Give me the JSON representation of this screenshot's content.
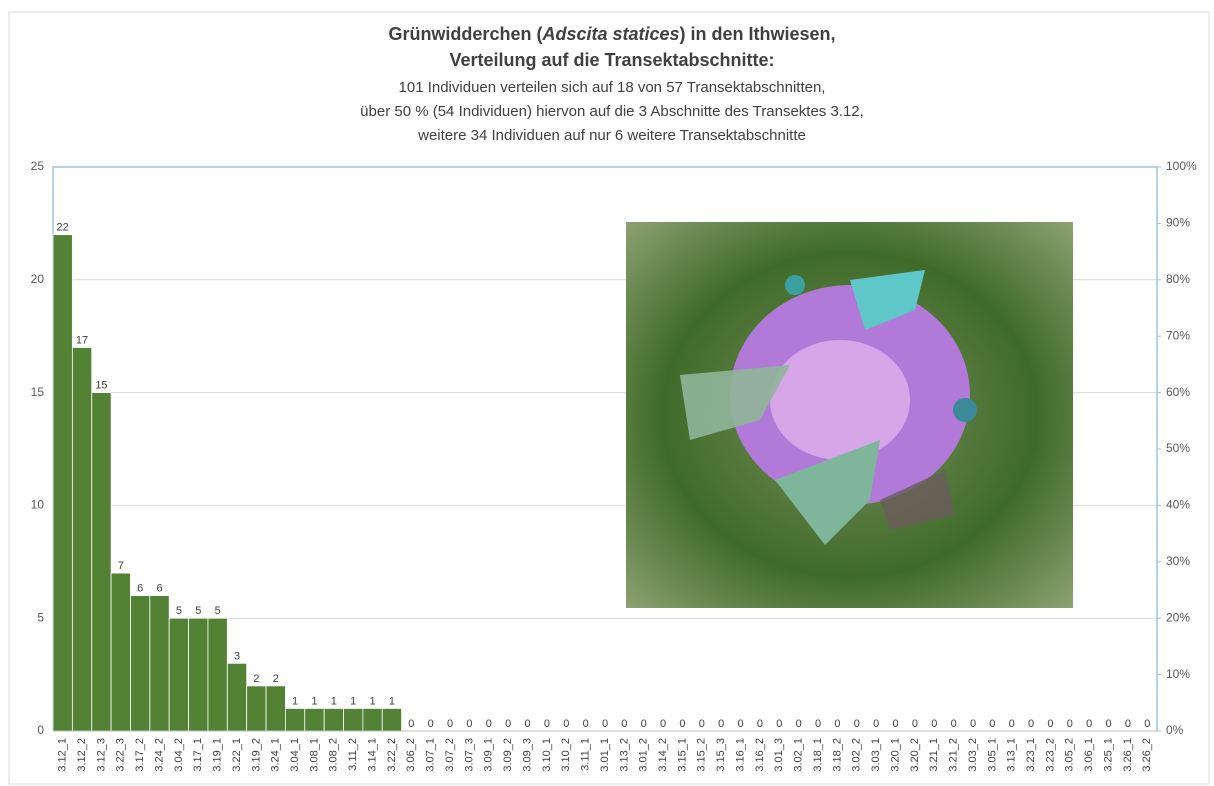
{
  "chart_data": {
    "type": "bar",
    "title": [
      "Grünwidderchen (",
      "Adscita statices",
      ") in den Ithwiesen,",
      "Verteilung auf die Transektabschnitte:"
    ],
    "subtitle": [
      "101 Individuen verteilen sich auf 18 von 57 Transektabschnitten,",
      "über 50 % (54 Individuen) hiervon auf die 3 Abschnitte des Transektes 3.12,",
      "weitere 34 Individuen auf nur 6 weitere Transektabschnitte"
    ],
    "categories": [
      "3.12_1",
      "3.12_2",
      "3.12_3",
      "3.22_3",
      "3.17_2",
      "3.24_2",
      "3.04_2",
      "3.17_1",
      "3.19_1",
      "3.22_1",
      "3.19_2",
      "3.24_1",
      "3.04_1",
      "3.08_1",
      "3.08_2",
      "3.11_2",
      "3.14_1",
      "3.22_2",
      "3.06_2",
      "3.07_1",
      "3.07_2",
      "3.07_3",
      "3.09_1",
      "3.09_2",
      "3.09_3",
      "3.10_1",
      "3.10_2",
      "3.11_1",
      "3.01_1",
      "3.13_2",
      "3.01_2",
      "3.14_2",
      "3.15_1",
      "3.15_2",
      "3.15_3",
      "3.16_1",
      "3.16_2",
      "3.01_3",
      "3.02_1",
      "3.18_1",
      "3.18_2",
      "3.02_2",
      "3.03_1",
      "3.20_1",
      "3.20_2",
      "3.21_1",
      "3.21_2",
      "3.03_2",
      "3.05_1",
      "3.13_1",
      "3.23_1",
      "3.23_2",
      "3.05_2",
      "3.06_1",
      "3.25_1",
      "3.26_1",
      "3.26_2"
    ],
    "values": [
      22,
      17,
      15,
      7,
      6,
      6,
      5,
      5,
      5,
      3,
      2,
      2,
      1,
      1,
      1,
      1,
      1,
      1,
      0,
      0,
      0,
      0,
      0,
      0,
      0,
      0,
      0,
      0,
      0,
      0,
      0,
      0,
      0,
      0,
      0,
      0,
      0,
      0,
      0,
      0,
      0,
      0,
      0,
      0,
      0,
      0,
      0,
      0,
      0,
      0,
      0,
      0,
      0,
      0,
      0,
      0,
      0
    ],
    "color": "#548235",
    "ylim": [
      0,
      25
    ],
    "yticks": [
      0,
      5,
      10,
      15,
      20,
      25
    ],
    "y2lim": [
      0,
      100
    ],
    "y2ticks": [
      {
        "value": 0,
        "label": "0%"
      },
      {
        "value": 10,
        "label": "10%"
      },
      {
        "value": 20,
        "label": "20%"
      },
      {
        "value": 30,
        "label": "30%"
      },
      {
        "value": 40,
        "label": "40%"
      },
      {
        "value": 50,
        "label": "50%"
      },
      {
        "value": 60,
        "label": "60%"
      },
      {
        "value": 70,
        "label": "70%"
      },
      {
        "value": 80,
        "label": "80%"
      },
      {
        "value": 90,
        "label": "90%"
      },
      {
        "value": 100,
        "label": "100%"
      }
    ],
    "grid": true
  }
}
